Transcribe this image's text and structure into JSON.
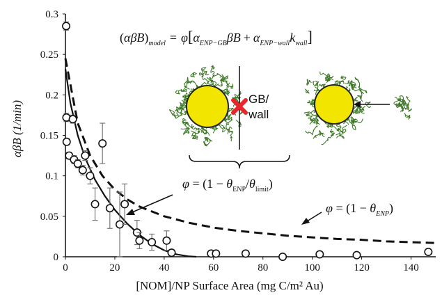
{
  "chart_data": {
    "type": "scatter",
    "xlabel": "[NOM]/NP Surface Area (mg C/m² Au)",
    "ylabel": "αβB (1/min)",
    "xlim": [
      0,
      150
    ],
    "ylim": [
      0,
      0.3
    ],
    "x_ticks": [
      "0",
      "20",
      "40",
      "60",
      "80",
      "100",
      "120",
      "140"
    ],
    "y_ticks": [
      "0",
      "0.05",
      "0.1",
      "0.15",
      "0.2",
      "0.25",
      "0.3"
    ],
    "grid": false,
    "legend": "none",
    "points": [
      {
        "x": 0.3,
        "y": 0.285,
        "err": 0.005
      },
      {
        "x": 0.4,
        "y": 0.172,
        "err": 0.005
      },
      {
        "x": 0.5,
        "y": 0.142,
        "err": 0.004
      },
      {
        "x": 1.5,
        "y": 0.125,
        "err": 0.004
      },
      {
        "x": 3,
        "y": 0.17,
        "err": 0.005
      },
      {
        "x": 3.5,
        "y": 0.12,
        "err": 0.005
      },
      {
        "x": 5,
        "y": 0.115,
        "err": 0.005
      },
      {
        "x": 7,
        "y": 0.107,
        "err": 0.006
      },
      {
        "x": 8,
        "y": 0.125,
        "err": 0.006
      },
      {
        "x": 10,
        "y": 0.1,
        "err": 0.01
      },
      {
        "x": 12,
        "y": 0.065,
        "err": 0.02
      },
      {
        "x": 15,
        "y": 0.14,
        "err": 0.025
      },
      {
        "x": 18,
        "y": 0.06,
        "err": 0.025
      },
      {
        "x": 22,
        "y": 0.04,
        "err": 0.04
      },
      {
        "x": 24,
        "y": 0.065,
        "err": 0.025
      },
      {
        "x": 29,
        "y": 0.03,
        "err": 0.015
      },
      {
        "x": 30,
        "y": 0.02,
        "err": 0.01
      },
      {
        "x": 35,
        "y": 0.018,
        "err": 0.01
      },
      {
        "x": 41,
        "y": 0.02,
        "err": 0.012
      },
      {
        "x": 43,
        "y": 0.005,
        "err": 0.004
      },
      {
        "x": 59,
        "y": 0.004,
        "err": 0.003
      },
      {
        "x": 61,
        "y": 0.004,
        "err": 0.003
      },
      {
        "x": 73,
        "y": 0.004,
        "err": 0.003
      },
      {
        "x": 88,
        "y": 0.0,
        "err": 0.002
      },
      {
        "x": 103,
        "y": 0.003,
        "err": 0.002
      },
      {
        "x": 118,
        "y": 0.002,
        "err": 0.002
      },
      {
        "x": 147,
        "y": 0.006,
        "err": 0.002
      }
    ],
    "curves": [
      {
        "style": "solid",
        "x": [
          0,
          2,
          5,
          8,
          12,
          16,
          20,
          25,
          30,
          35,
          40,
          45,
          50,
          53
        ],
        "y": [
          0.232,
          0.19,
          0.15,
          0.122,
          0.095,
          0.075,
          0.058,
          0.041,
          0.027,
          0.016,
          0.008,
          0.003,
          0.0005,
          0
        ]
      },
      {
        "style": "dashed",
        "x": [
          0,
          5,
          10,
          15,
          20,
          25,
          30,
          40,
          50,
          60,
          70,
          80,
          90,
          100,
          110,
          120,
          130,
          140,
          150
        ],
        "y": [
          0.245,
          0.165,
          0.125,
          0.1,
          0.083,
          0.071,
          0.062,
          0.05,
          0.042,
          0.036,
          0.032,
          0.029,
          0.026,
          0.024,
          0.022,
          0.021,
          0.019,
          0.018,
          0.017
        ]
      }
    ],
    "annotations": {
      "model_equation": {
        "lhs_open": "(",
        "lhs_body": "αβB",
        "lhs_close": ")",
        "lhs_sub": "model",
        "eq": "=",
        "phi": "φ",
        "bracket_open": "[",
        "term1_alpha": "α",
        "term1_sub": "ENP−GB",
        "term1_rest": "βB",
        "plus": "+",
        "term2_alpha": "α",
        "term2_sub": "ENP−wall",
        "term2_k": "k",
        "term2_ksub": "wall",
        "bracket_close": "]"
      },
      "phi_limit": {
        "lhs": "φ",
        "mid": " = (1 − ",
        "theta1": "θ",
        "sub1": "ENP",
        "slash": "/",
        "theta2": "θ",
        "sub2": "limit",
        "close": ")"
      },
      "phi_enp": {
        "lhs": "φ",
        "mid": " = (1 − ",
        "theta": "θ",
        "sub": "ENP",
        "close": ")"
      },
      "gb_label_line1": "GB/",
      "gb_label_line2": "wall"
    },
    "colors": {
      "particle_fill": "#f2e600",
      "particle_stroke": "#222222",
      "polymer": "#3f7a2a",
      "cross": "#e8262b",
      "ink": "#111111"
    }
  }
}
